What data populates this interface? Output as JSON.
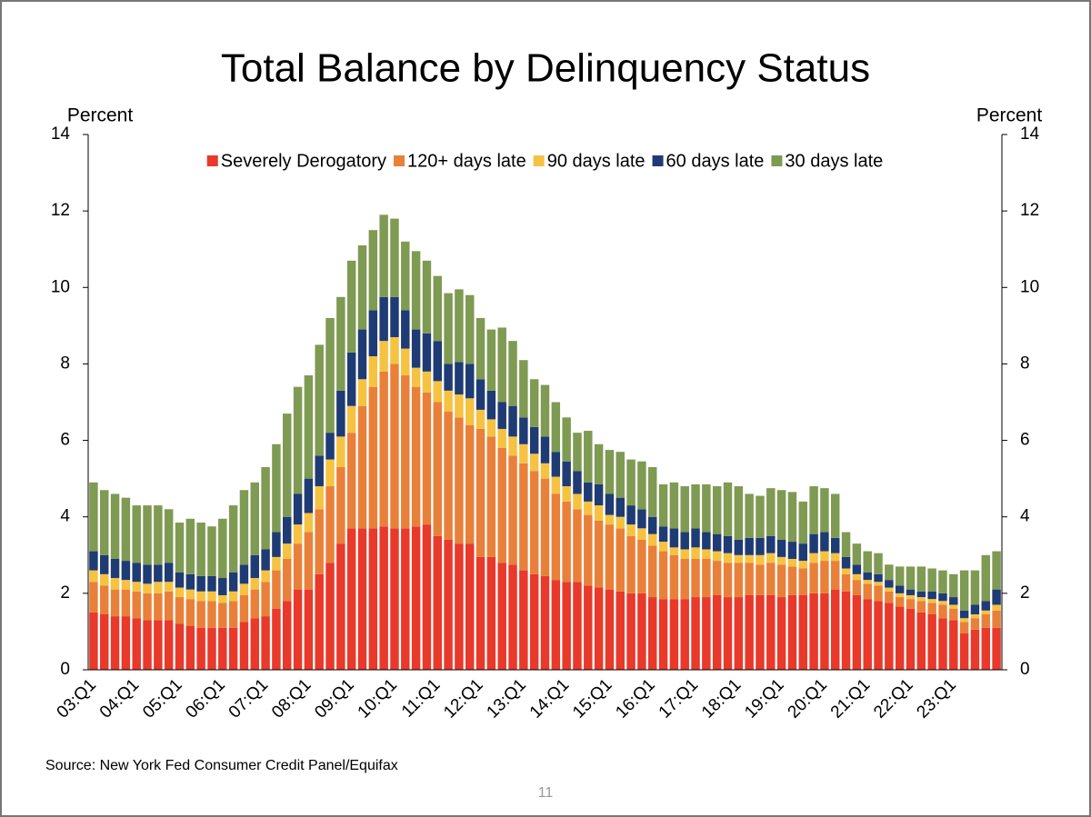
{
  "chart_data": {
    "type": "stacked_bar",
    "title": "Total Balance by Delinquency Status",
    "y_label": "Percent",
    "y2_label": "Percent",
    "source": "Source: New York Fed Consumer Credit Panel/Equifax",
    "page_number": "11",
    "legend": "top",
    "categories": [
      "03:Q1",
      null,
      null,
      null,
      "04:Q1",
      null,
      null,
      null,
      "05:Q1",
      null,
      null,
      null,
      "06:Q1",
      null,
      null,
      null,
      "07:Q1",
      null,
      null,
      null,
      "08:Q1",
      null,
      null,
      null,
      "09:Q1",
      null,
      null,
      null,
      "10:Q1",
      null,
      null,
      null,
      "11:Q1",
      null,
      null,
      null,
      "12:Q1",
      null,
      null,
      null,
      "13:Q1",
      null,
      null,
      null,
      "14:Q1",
      null,
      null,
      null,
      "15:Q1",
      null,
      null,
      null,
      "16:Q1",
      null,
      null,
      null,
      "17:Q1",
      null,
      null,
      null,
      "18:Q1",
      null,
      null,
      null,
      "19:Q1",
      null,
      null,
      null,
      "20:Q1",
      null,
      null,
      null,
      "21:Q1",
      null,
      null,
      null,
      "22:Q1",
      null,
      null,
      null,
      "23:Q1",
      null,
      null,
      null,
      null
    ],
    "series": [
      {
        "name": "Severely Derogatory",
        "color": "#e8392a",
        "values": [
          1.5,
          1.45,
          1.4,
          1.4,
          1.35,
          1.3,
          1.3,
          1.3,
          1.2,
          1.15,
          1.1,
          1.1,
          1.1,
          1.1,
          1.25,
          1.35,
          1.4,
          1.6,
          1.8,
          2.1,
          2.1,
          2.5,
          2.8,
          3.3,
          3.7,
          3.7,
          3.7,
          3.75,
          3.7,
          3.7,
          3.75,
          3.8,
          3.5,
          3.4,
          3.3,
          3.3,
          2.95,
          2.95,
          2.8,
          2.75,
          2.6,
          2.5,
          2.45,
          2.35,
          2.3,
          2.3,
          2.2,
          2.15,
          2.1,
          2.05,
          2.0,
          2.0,
          1.9,
          1.85,
          1.85,
          1.85,
          1.9,
          1.9,
          1.95,
          1.9,
          1.9,
          1.95,
          1.95,
          1.95,
          1.9,
          1.95,
          1.95,
          2.0,
          2.0,
          2.1,
          2.05,
          1.95,
          1.85,
          1.8,
          1.75,
          1.65,
          1.6,
          1.5,
          1.45,
          1.35,
          1.3,
          0.95,
          1.05,
          1.1,
          1.1
        ]
      },
      {
        "name": "120+ days late",
        "color": "#e9803a",
        "values": [
          0.8,
          0.75,
          0.7,
          0.7,
          0.7,
          0.7,
          0.7,
          0.75,
          0.7,
          0.7,
          0.7,
          0.7,
          0.65,
          0.7,
          0.7,
          0.75,
          0.9,
          1.0,
          1.1,
          1.2,
          1.5,
          1.7,
          2.0,
          2.0,
          2.5,
          3.2,
          3.7,
          4.05,
          4.3,
          4.0,
          3.65,
          3.45,
          3.5,
          3.35,
          3.3,
          3.1,
          3.35,
          3.15,
          3.0,
          2.85,
          2.8,
          2.7,
          2.55,
          2.25,
          2.1,
          1.9,
          1.85,
          1.75,
          1.7,
          1.65,
          1.5,
          1.4,
          1.35,
          1.25,
          1.15,
          1.05,
          1.0,
          1.0,
          0.9,
          0.9,
          0.9,
          0.85,
          0.8,
          0.85,
          0.85,
          0.75,
          0.7,
          0.8,
          0.85,
          0.75,
          0.45,
          0.4,
          0.4,
          0.4,
          0.3,
          0.25,
          0.25,
          0.3,
          0.3,
          0.35,
          0.3,
          0.3,
          0.3,
          0.35,
          0.45
        ]
      },
      {
        "name": "90 days late",
        "color": "#f5c242",
        "values": [
          0.3,
          0.3,
          0.3,
          0.25,
          0.25,
          0.25,
          0.3,
          0.25,
          0.25,
          0.25,
          0.25,
          0.25,
          0.2,
          0.25,
          0.3,
          0.3,
          0.3,
          0.35,
          0.4,
          0.5,
          0.5,
          0.6,
          0.7,
          0.8,
          0.7,
          0.7,
          0.8,
          0.8,
          0.7,
          0.7,
          0.5,
          0.55,
          0.55,
          0.55,
          0.6,
          0.7,
          0.5,
          0.45,
          0.5,
          0.5,
          0.5,
          0.45,
          0.4,
          0.45,
          0.4,
          0.4,
          0.35,
          0.4,
          0.25,
          0.3,
          0.3,
          0.3,
          0.3,
          0.25,
          0.2,
          0.25,
          0.3,
          0.25,
          0.25,
          0.25,
          0.2,
          0.2,
          0.25,
          0.25,
          0.2,
          0.2,
          0.2,
          0.25,
          0.25,
          0.2,
          0.15,
          0.15,
          0.1,
          0.1,
          0.1,
          0.1,
          0.1,
          0.1,
          0.1,
          0.1,
          0.1,
          0.1,
          0.1,
          0.1,
          0.15
        ]
      },
      {
        "name": "60 days late",
        "color": "#1f3b73",
        "values": [
          0.5,
          0.5,
          0.5,
          0.5,
          0.5,
          0.5,
          0.45,
          0.5,
          0.4,
          0.4,
          0.4,
          0.4,
          0.45,
          0.5,
          0.5,
          0.6,
          0.55,
          0.65,
          0.7,
          0.8,
          0.9,
          0.8,
          0.7,
          1.2,
          1.4,
          1.3,
          1.2,
          1.15,
          1.05,
          1.0,
          1.0,
          1.0,
          1.05,
          0.7,
          0.85,
          0.9,
          0.8,
          0.75,
          0.7,
          0.8,
          0.7,
          0.7,
          0.7,
          0.65,
          0.65,
          0.6,
          0.5,
          0.55,
          0.55,
          0.5,
          0.5,
          0.5,
          0.45,
          0.4,
          0.5,
          0.45,
          0.5,
          0.45,
          0.45,
          0.45,
          0.4,
          0.45,
          0.45,
          0.45,
          0.45,
          0.45,
          0.45,
          0.5,
          0.5,
          0.4,
          0.3,
          0.25,
          0.2,
          0.2,
          0.2,
          0.2,
          0.15,
          0.15,
          0.2,
          0.2,
          0.2,
          0.2,
          0.25,
          0.25,
          0.4
        ]
      },
      {
        "name": "30 days late",
        "color": "#7f9a52",
        "values": [
          1.8,
          1.7,
          1.7,
          1.65,
          1.5,
          1.55,
          1.55,
          1.4,
          1.3,
          1.45,
          1.4,
          1.3,
          1.55,
          1.75,
          1.95,
          1.9,
          2.15,
          2.3,
          2.7,
          2.8,
          2.7,
          2.9,
          3.0,
          2.45,
          2.4,
          2.2,
          2.1,
          2.15,
          2.05,
          1.8,
          2.05,
          1.9,
          1.7,
          1.85,
          1.9,
          1.8,
          1.6,
          1.6,
          1.95,
          1.7,
          1.5,
          1.25,
          1.35,
          1.3,
          1.15,
          1.0,
          1.35,
          1.05,
          1.15,
          1.2,
          1.2,
          1.25,
          1.3,
          1.1,
          1.2,
          1.2,
          1.15,
          1.25,
          1.25,
          1.4,
          1.4,
          1.15,
          1.1,
          1.25,
          1.3,
          1.3,
          1.1,
          1.25,
          1.15,
          1.15,
          0.65,
          0.55,
          0.55,
          0.55,
          0.4,
          0.5,
          0.6,
          0.65,
          0.6,
          0.6,
          0.6,
          1.05,
          0.9,
          1.2,
          1.0
        ]
      }
    ],
    "ylim": [
      0,
      14
    ],
    "yticks": [
      0,
      2,
      4,
      6,
      8,
      10,
      12,
      14
    ],
    "y2lim": [
      0,
      14
    ],
    "y2ticks": [
      0,
      2,
      4,
      6,
      8,
      10,
      12,
      14
    ]
  }
}
